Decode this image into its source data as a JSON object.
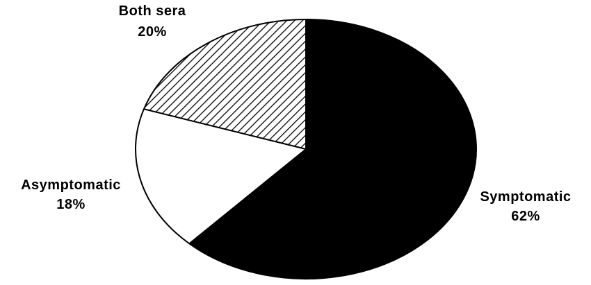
{
  "chart_data": {
    "type": "pie",
    "title": "",
    "slices": [
      {
        "label": "Symptomatic",
        "value": 62,
        "value_label": "62%",
        "fill": "solid",
        "color": "#000000"
      },
      {
        "label": "Asymptomatic",
        "value": 18,
        "value_label": "18%",
        "fill": "solid",
        "color": "#ffffff"
      },
      {
        "label": "Both sera",
        "value": 20,
        "value_label": "20%",
        "fill": "diagonal-hatch",
        "color": "#000000"
      }
    ],
    "start_angle": "12 o'clock",
    "direction": "clockwise",
    "legend": "none",
    "outline_color": "#000000"
  }
}
